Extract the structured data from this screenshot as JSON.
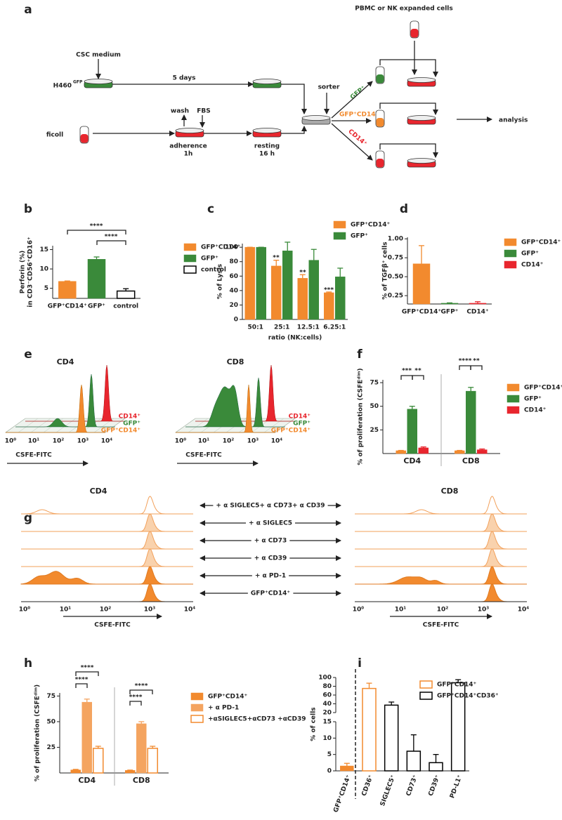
{
  "panel_labels": [
    "a",
    "b",
    "c",
    "d",
    "e",
    "f",
    "g",
    "h",
    "i"
  ],
  "diagram": {
    "pbmc": "PBMC or NK expanded cells",
    "csc": "CSC medium",
    "h460": "H460",
    "h460_sup": "GFP",
    "days": "5 days",
    "sorter": "sorter",
    "wash": "wash",
    "fbs": "FBS",
    "ficoll": "ficoll",
    "adherence": "adherence",
    "adherence_time": "1h",
    "resting": "resting",
    "resting_time": "16 h",
    "branch_gfp": "GFP⁺",
    "branch_both": "GFP⁺CD14⁺",
    "branch_cd14": "CD14⁺",
    "analysis": "analysis"
  },
  "chart_data": [
    {
      "type": "bar",
      "categories": [
        "GFP⁺CD14⁺",
        "GFP⁺",
        "control"
      ],
      "values": [
        6.8,
        12.5,
        4.3
      ],
      "errors": [
        0.1,
        0.6,
        0.6
      ],
      "colors": [
        "#f28a2e",
        "#3a8a3a",
        "#000000"
      ],
      "filled": [
        true,
        true,
        false
      ],
      "ylim": [
        2.4,
        16
      ],
      "yticks": [
        5,
        10,
        15
      ],
      "ylabel": [
        "Perforin (%)",
        "in CD3⁻CD56⁺CD16⁺"
      ],
      "annotations": [
        "****",
        "****"
      ],
      "legend": "right"
    },
    {
      "type": "bar",
      "categories": [
        "50:1",
        "25:1",
        "12.5:1",
        "6.25:1"
      ],
      "series": [
        {
          "name": "GFP⁺CD14⁺",
          "color": "#f28a2e",
          "values": [
            100,
            74,
            57,
            37
          ],
          "errors": [
            0,
            8,
            5,
            1
          ]
        },
        {
          "name": "GFP⁺",
          "color": "#3a8a3a",
          "values": [
            100,
            95,
            82,
            59
          ],
          "errors": [
            0,
            12,
            15,
            12
          ]
        }
      ],
      "ylim": [
        0,
        105
      ],
      "yticks": [
        0,
        20,
        40,
        60,
        80,
        100
      ],
      "ylabel": [
        "% of Lysis"
      ],
      "xlabel": "ratio (NK:cells)",
      "annotations": [
        "**",
        "**",
        "***"
      ],
      "legend": "right"
    },
    {
      "type": "bar",
      "categories": [
        "GFP⁺CD14⁺",
        "GFP⁺",
        "CD14⁺"
      ],
      "values": [
        0.67,
        0.15,
        0.15
      ],
      "errors": [
        0.24,
        0.005,
        0.02
      ],
      "colors": [
        "#f28a2e",
        "#3a8a3a",
        "#e8262e"
      ],
      "filled": [
        true,
        true,
        true
      ],
      "ylim": [
        0.14,
        1.02
      ],
      "yticks": [
        0.25,
        {
          "value": 0.5,
          "label": "0.50"
        },
        0.75,
        {
          "value": 1,
          "label": "1.00"
        }
      ],
      "ylabel": [
        "% of TGFβ⁺ cells"
      ],
      "legend": "right"
    },
    {
      "type": "bar",
      "categories": [
        "CD4",
        "CD8"
      ],
      "series": [
        {
          "name": "GFP⁺CD14⁺",
          "color": "#f28a2e",
          "values": [
            3,
            3
          ],
          "errors": [
            0.3,
            0.3
          ]
        },
        {
          "name": "GFP⁺",
          "color": "#3a8a3a",
          "values": [
            47,
            66
          ],
          "errors": [
            3,
            4
          ]
        },
        {
          "name": "CD14⁺",
          "color": "#e8262e",
          "values": [
            6,
            4
          ],
          "errors": [
            1,
            0.8
          ]
        }
      ],
      "ylim": [
        0,
        78
      ],
      "yticks": [
        25,
        50,
        75
      ],
      "ylabel": [
        "% of proliferation (CSFEᵈⁱᵐ)"
      ],
      "annotations": [
        "***",
        "**",
        "****",
        "**"
      ],
      "legend": "right"
    },
    {
      "type": "bar",
      "categories": [
        "CD4",
        "CD8"
      ],
      "series": [
        {
          "name": "GFP⁺CD14⁺",
          "color": "#f28a2e",
          "values": [
            3,
            2.5
          ],
          "errors": [
            0.5,
            0.3
          ]
        },
        {
          "name": "+ α PD-1",
          "color": "#f4a460",
          "values": [
            69,
            48
          ],
          "errors": [
            3,
            2
          ]
        },
        {
          "name": "+αSIGLEC5+αCD73 +αCD39",
          "color": "#f28a2e",
          "filled": false,
          "values": [
            24,
            24
          ],
          "errors": [
            2,
            2
          ]
        }
      ],
      "ylim": [
        0,
        78
      ],
      "yticks": [
        25,
        50,
        75
      ],
      "ylabel": [
        "% of proliferation (CSFEᵈⁱᵐ)"
      ],
      "annotations": [
        "****",
        "****",
        "****",
        "****"
      ],
      "legend": "right"
    },
    {
      "type": "bar",
      "categories": [
        "GFP⁺CD14⁺",
        "CD36⁺",
        "SIGLEC5⁺",
        "CD73⁺",
        "CD39⁺",
        "PD-L1⁺"
      ],
      "values": [
        1.5,
        75,
        37,
        6,
        2.5,
        88
      ],
      "errors": [
        0.8,
        12,
        7,
        5,
        2.5,
        7
      ],
      "colors": [
        "#f28a2e",
        "#f28a2e",
        "#000000",
        "#000000",
        "#000000",
        "#000000"
      ],
      "filled": [
        true,
        false,
        false,
        false,
        false,
        false
      ],
      "ylim": [
        0,
        100
      ],
      "yticks": [
        0,
        5,
        10,
        15,
        20,
        40,
        60,
        80,
        100
      ],
      "y_break": [
        15,
        20
      ],
      "ylabel": [
        "% of cells"
      ],
      "series_names": [
        "GFP⁺CD14⁺",
        "GFP⁺CD14⁺CD36⁺"
      ],
      "legend_colors": [
        "#f28a2e",
        "#000000"
      ],
      "legend": "right"
    }
  ],
  "histograms": {
    "xtick_labels": [
      "10⁰",
      "10¹",
      "10²",
      "10³",
      "10⁴"
    ],
    "xlabel": "CSFE-FITC",
    "e": {
      "titles": [
        "CD4",
        "CD8"
      ],
      "legend": [
        "CD14⁺",
        "GFP⁺",
        "GFP⁺CD14⁺"
      ]
    },
    "g": {
      "titles": [
        "CD4",
        "CD8"
      ],
      "conditions": [
        "+ α SIGLEC5+ α CD73+ α CD39",
        "+ α SIGLEC5",
        "+ α CD73",
        "+ α CD39",
        "+ α PD-1",
        "GFP⁺CD14⁺"
      ]
    }
  }
}
